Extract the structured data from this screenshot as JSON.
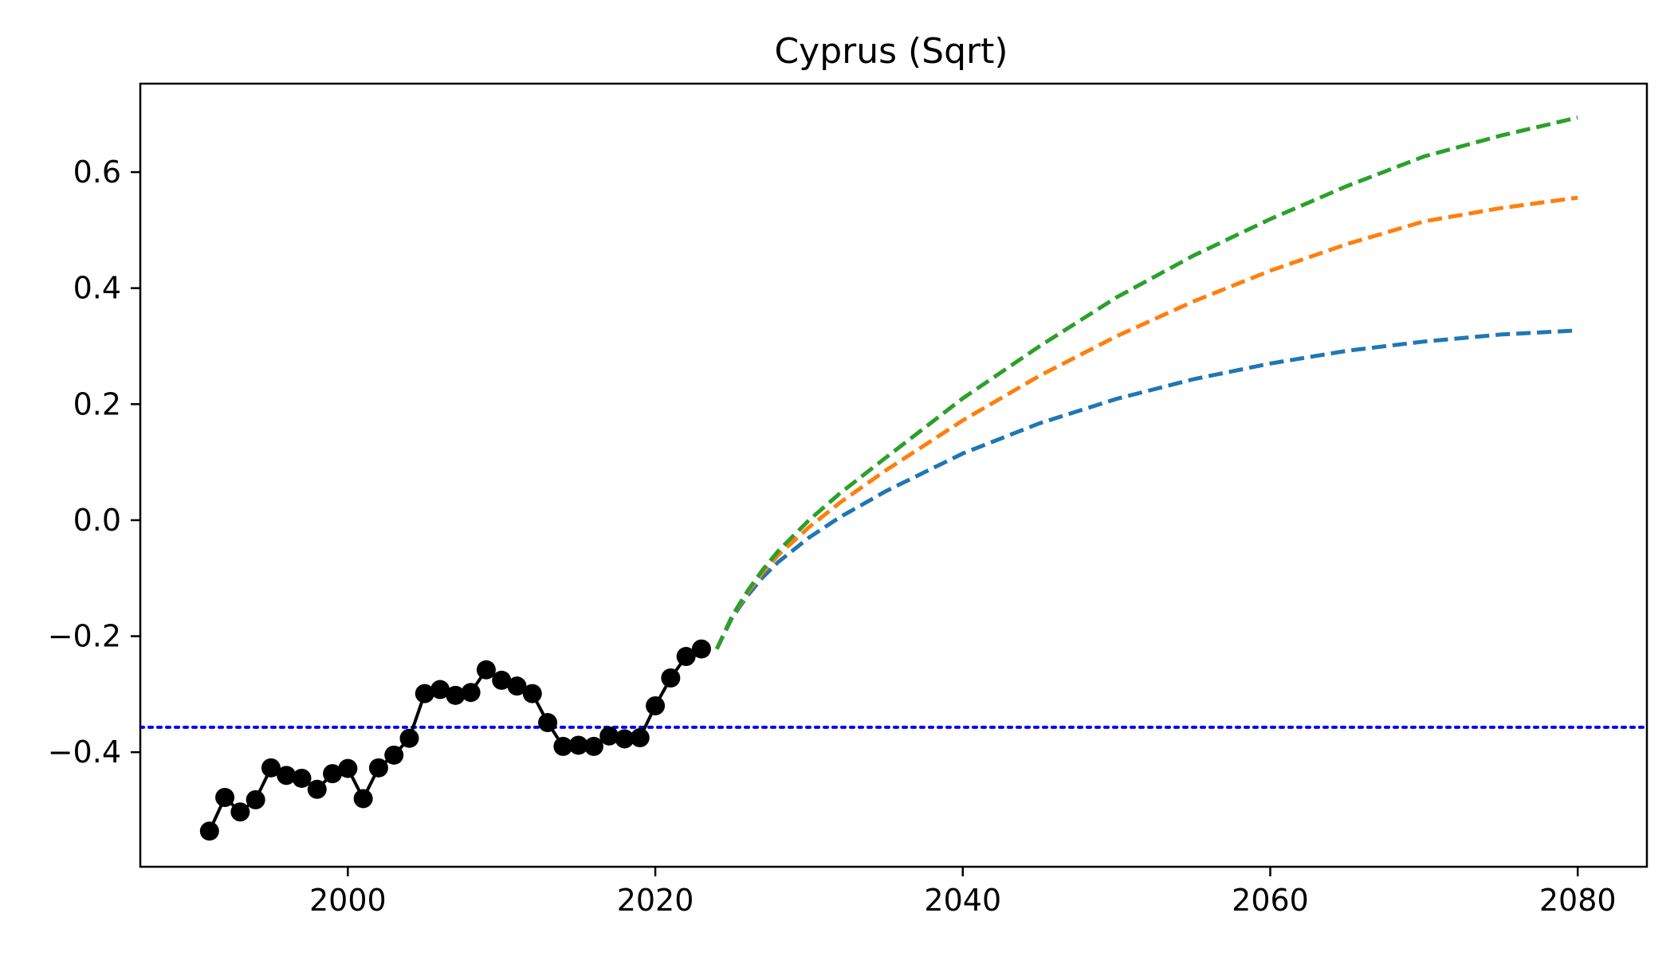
{
  "chart_data": {
    "type": "line",
    "title": "Cyprus (Sqrt)",
    "xlabel": "",
    "ylabel": "",
    "xlim": [
      1986.5,
      2084.5
    ],
    "ylim": [
      -0.5975,
      0.7525
    ],
    "xticks": [
      2000,
      2020,
      2040,
      2060,
      2080
    ],
    "yticks": [
      -0.4,
      -0.2,
      0.0,
      0.2,
      0.4,
      0.6
    ],
    "ytick_labels": [
      "−0.4",
      "−0.2",
      "0.0",
      "0.2",
      "0.4",
      "0.6"
    ],
    "grid": false,
    "reference_line": {
      "y": -0.357,
      "color": "#0000ff",
      "style": "dotted"
    },
    "historical": {
      "color": "#000000",
      "marker": "circle",
      "x": [
        1991,
        1992,
        1993,
        1994,
        1995,
        1996,
        1997,
        1998,
        1999,
        2000,
        2001,
        2002,
        2003,
        2004,
        2005,
        2006,
        2007,
        2008,
        2009,
        2010,
        2011,
        2012,
        2013,
        2014,
        2015,
        2016,
        2017,
        2018,
        2019,
        2020,
        2021,
        2022,
        2023
      ],
      "y": [
        -0.536,
        -0.478,
        -0.503,
        -0.482,
        -0.427,
        -0.44,
        -0.445,
        -0.464,
        -0.437,
        -0.428,
        -0.48,
        -0.427,
        -0.405,
        -0.376,
        -0.299,
        -0.292,
        -0.302,
        -0.297,
        -0.258,
        -0.276,
        -0.286,
        -0.299,
        -0.349,
        -0.39,
        -0.388,
        -0.39,
        -0.372,
        -0.377,
        -0.375,
        -0.32,
        -0.272,
        -0.235,
        -0.222
      ]
    },
    "series": [
      {
        "color": "#1f77b4",
        "style": "dashed",
        "x": [
          2024,
          2025,
          2026,
          2027,
          2028,
          2030,
          2032,
          2035,
          2040,
          2045,
          2050,
          2055,
          2060,
          2065,
          2070,
          2075,
          2080
        ],
        "y": [
          -0.222,
          -0.168,
          -0.13,
          -0.098,
          -0.072,
          -0.03,
          0.005,
          0.05,
          0.115,
          0.167,
          0.209,
          0.243,
          0.27,
          0.292,
          0.308,
          0.32,
          0.327
        ]
      },
      {
        "color": "#ff7f0e",
        "style": "dashed",
        "x": [
          2024,
          2025,
          2026,
          2027,
          2028,
          2030,
          2032,
          2035,
          2040,
          2045,
          2050,
          2055,
          2060,
          2065,
          2070,
          2075,
          2080
        ],
        "y": [
          -0.222,
          -0.166,
          -0.125,
          -0.09,
          -0.06,
          -0.012,
          0.03,
          0.086,
          0.172,
          0.249,
          0.317,
          0.377,
          0.43,
          0.476,
          0.515,
          0.538,
          0.556
        ]
      },
      {
        "color": "#2ca02c",
        "style": "dashed",
        "x": [
          2024,
          2025,
          2026,
          2027,
          2028,
          2030,
          2032,
          2035,
          2040,
          2045,
          2050,
          2055,
          2060,
          2065,
          2070,
          2075,
          2080
        ],
        "y": [
          -0.222,
          -0.165,
          -0.122,
          -0.085,
          -0.053,
          0.0,
          0.046,
          0.108,
          0.21,
          0.3,
          0.384,
          0.456,
          0.519,
          0.576,
          0.627,
          0.663,
          0.694
        ]
      }
    ]
  }
}
